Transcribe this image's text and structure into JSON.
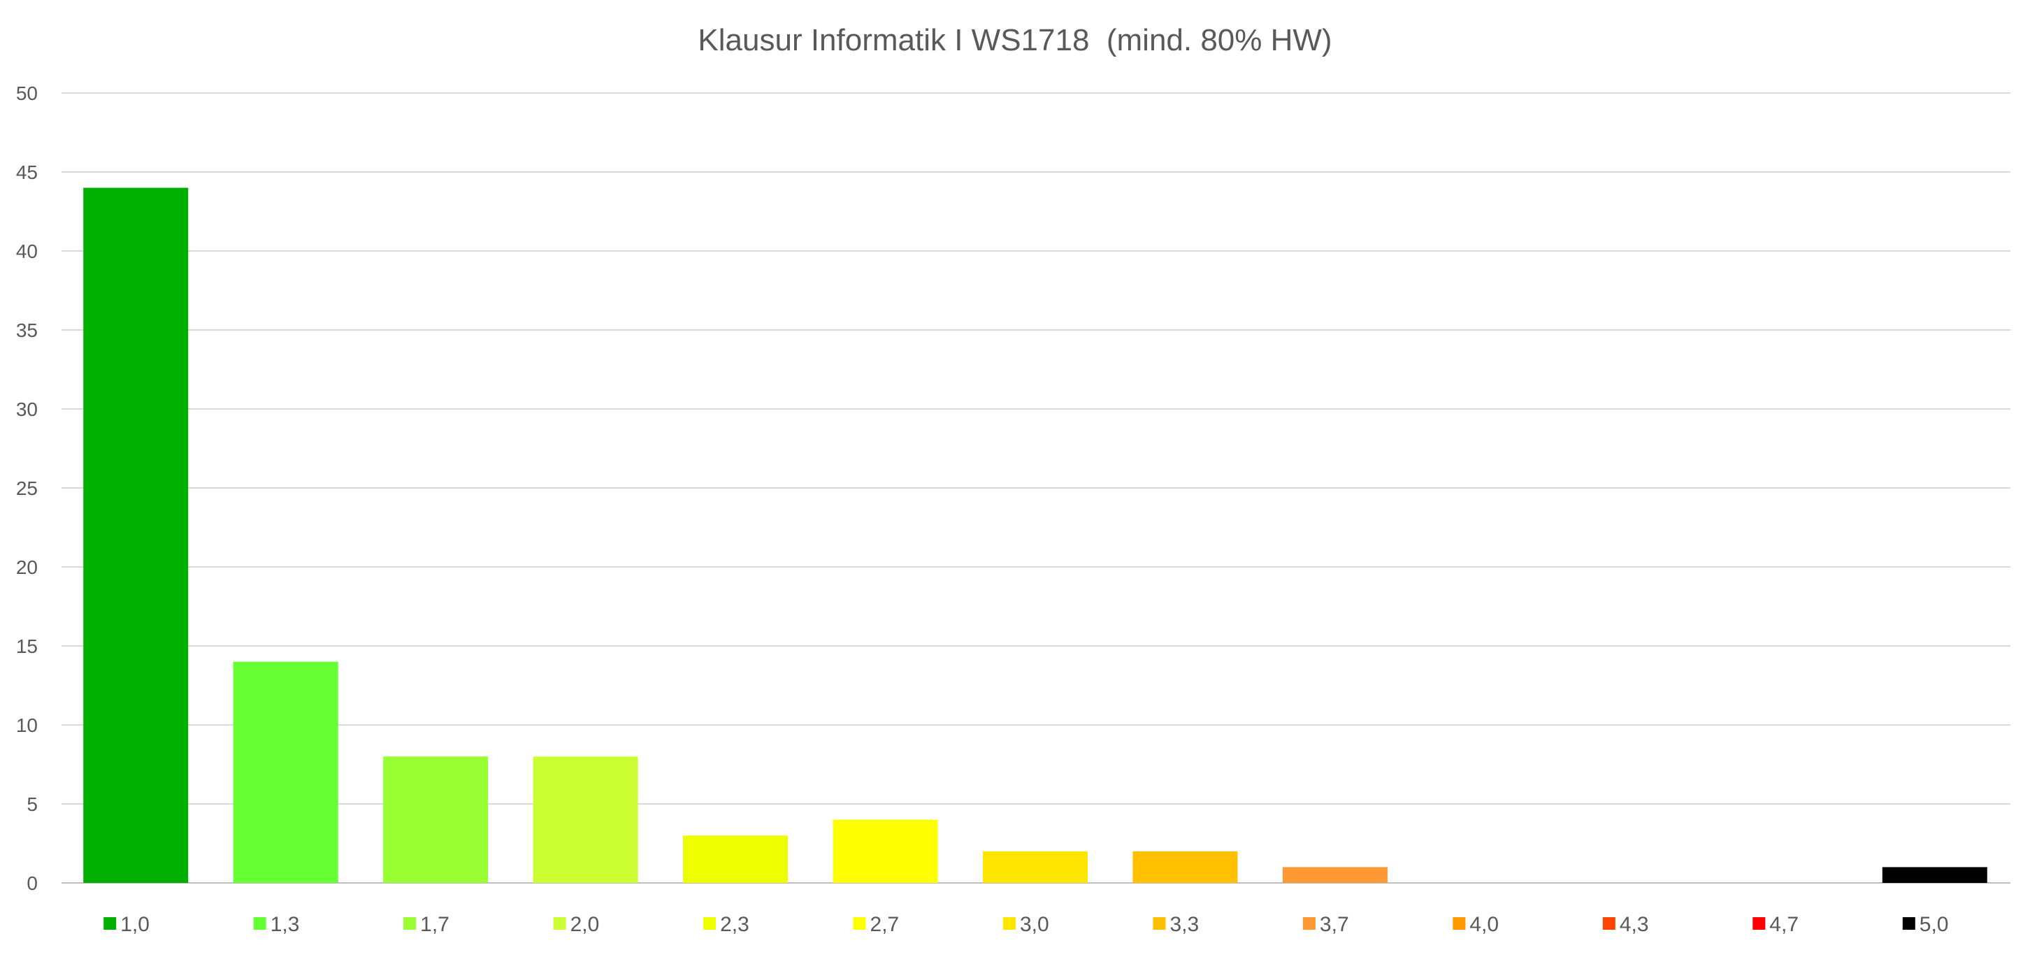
{
  "chart_data": {
    "type": "bar",
    "title": "Klausur Informatik I WS1718  (mind. 80% HW)",
    "xlabel": "",
    "ylabel": "",
    "ylim": [
      0,
      50
    ],
    "yticks": [
      0,
      5,
      10,
      15,
      20,
      25,
      30,
      35,
      40,
      45,
      50
    ],
    "grid": true,
    "legend_position": "bottom",
    "series": [
      {
        "name": "1,0",
        "value": 44,
        "color": "#00B000"
      },
      {
        "name": "1,3",
        "value": 14,
        "color": "#66FF33"
      },
      {
        "name": "1,7",
        "value": 8,
        "color": "#99FF33"
      },
      {
        "name": "2,0",
        "value": 8,
        "color": "#CCFF33"
      },
      {
        "name": "2,3",
        "value": 3,
        "color": "#EEFF00"
      },
      {
        "name": "2,7",
        "value": 4,
        "color": "#FFFF00"
      },
      {
        "name": "3,0",
        "value": 2,
        "color": "#FFE600"
      },
      {
        "name": "3,3",
        "value": 2,
        "color": "#FFC000"
      },
      {
        "name": "3,7",
        "value": 1,
        "color": "#FF9933"
      },
      {
        "name": "4,0",
        "value": 0,
        "color": "#FF9900"
      },
      {
        "name": "4,3",
        "value": 0,
        "color": "#FF4400"
      },
      {
        "name": "4,7",
        "value": 0,
        "color": "#FF0000"
      },
      {
        "name": "5,0",
        "value": 1,
        "color": "#000000"
      }
    ]
  }
}
